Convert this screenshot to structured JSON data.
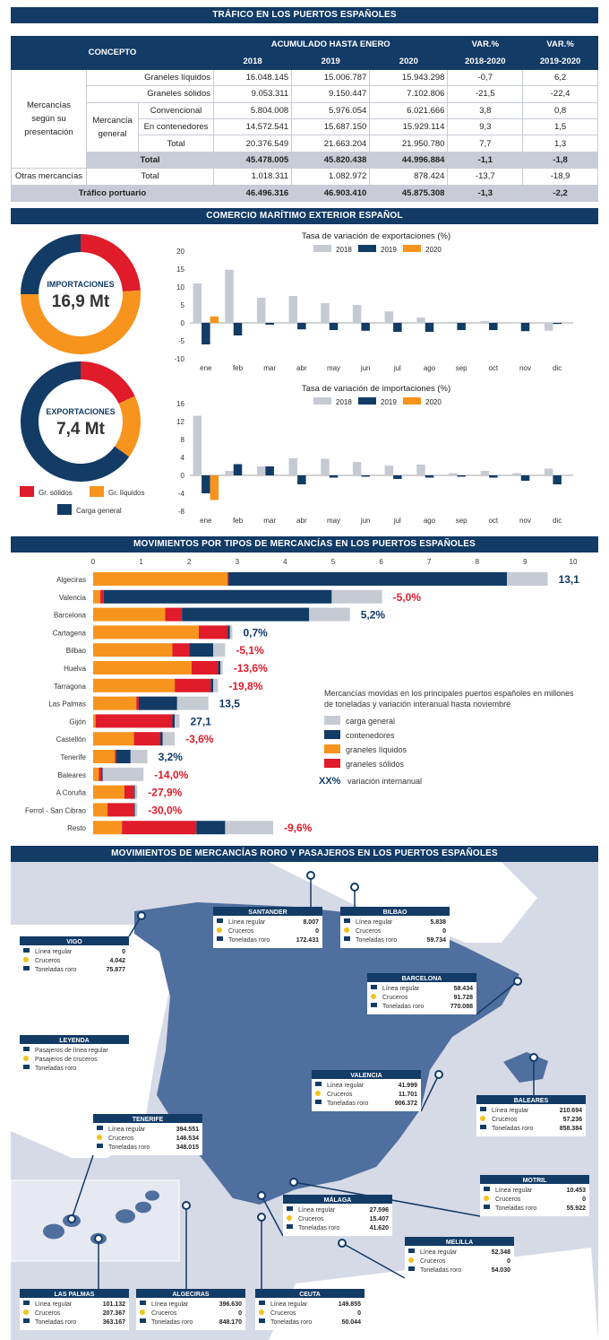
{
  "sections": {
    "trafico": "TRÁFICO EN LOS PUERTOS ESPAÑOLES",
    "comercio": "COMERCIO MARÍTIMO EXTERIOR ESPAÑOL",
    "movimientos": "MOVIMIENTOS POR TIPOS DE MERCANCÍAS EN LOS PUERTOS ESPAÑOLES",
    "roro": "MOVIMIENTOS DE MERCANCÍAS RORO Y PASAJEROS EN LOS PUERTOS ESPAÑOLES"
  },
  "table": {
    "h_concepto": "CONCEPTO",
    "h_acum": "ACUMULADO HASTA ENERO",
    "h_var1": "VAR.%",
    "h_var2": "VAR.%",
    "y2018": "2018",
    "y2019": "2019",
    "y2020": "2020",
    "v1": "2018-2020",
    "v2": "2019-2020",
    "group1": "Mercancías según su presentación",
    "merc_general": "Mercancía general",
    "rows": [
      {
        "label": "Graneles líquidos",
        "v": [
          "16.048.145",
          "15.006.787",
          "15.943.298",
          "-0,7",
          "6,2"
        ]
      },
      {
        "label": "Graneles sólidos",
        "v": [
          "9.053.311",
          "9.150.447",
          "7.102.806",
          "-21,5",
          "-22,4"
        ]
      },
      {
        "label": "Convencional",
        "v": [
          "5.804.008",
          "5.976.054",
          "6.021.666",
          "3,8",
          "0,8"
        ]
      },
      {
        "label": "En contenedores",
        "v": [
          "14.572.541",
          "15.687.150",
          "15.929.114",
          "9,3",
          "1,5"
        ]
      },
      {
        "label": "Total",
        "v": [
          "20.376.549",
          "21.663.204",
          "21.950.780",
          "7,7",
          "1,3"
        ]
      },
      {
        "label": "Total",
        "v": [
          "45.478.005",
          "45.820.438",
          "44.996.884",
          "-1,1",
          "-1,8"
        ]
      },
      {
        "label": "Total",
        "v": [
          "1.018.311",
          "1.082.972",
          "878.424",
          "-13,7",
          "-18,9"
        ]
      },
      {
        "label": "Tráfico portuario",
        "v": [
          "46.496.316",
          "46.903.410",
          "45.875.308",
          "-1,3",
          "-2,2"
        ]
      }
    ],
    "otras": "Otras mercancías"
  },
  "donuts": {
    "imp_label": "IMPORTACIONES",
    "imp_value": "16,9 Mt",
    "exp_label": "EXPORTACIONES",
    "exp_value": "7,4 Mt",
    "legend": [
      "Gr. sólidos",
      "Gr. líquidos",
      "Carga general"
    ],
    "colors": {
      "solidos": "#e01b2a",
      "liquidos": "#f7941d",
      "general": "#123b66"
    }
  },
  "chart_data": [
    {
      "type": "pie",
      "name": "importaciones",
      "labels": [
        "Gr. sólidos",
        "Gr. líquidos",
        "Carga general"
      ],
      "values": [
        24,
        51,
        25
      ]
    },
    {
      "type": "pie",
      "name": "exportaciones",
      "labels": [
        "Gr. sólidos",
        "Gr. líquidos",
        "Carga general"
      ],
      "values": [
        18,
        17,
        65
      ]
    },
    {
      "type": "bar",
      "title": "Tasa de variación de exportaciones (%)",
      "categories": [
        "ene",
        "feb",
        "mar",
        "abr",
        "may",
        "jun",
        "jul",
        "ago",
        "sep",
        "oct",
        "nov",
        "dic"
      ],
      "ylim": [
        -10,
        20
      ],
      "yticks": [
        20,
        15,
        10,
        5,
        0,
        -5,
        -10
      ],
      "series": [
        {
          "name": "2018",
          "color": "#c6cad3",
          "values": [
            11,
            14.8,
            7,
            7.5,
            5.5,
            5,
            3.2,
            1.5,
            0.3,
            0.5,
            0,
            -2.2
          ]
        },
        {
          "name": "2019",
          "color": "#123b66",
          "values": [
            -6,
            -3.5,
            -0.5,
            -1.8,
            -2,
            -2.2,
            -2.5,
            -2.5,
            -2,
            -2,
            -2.3,
            -0.3
          ]
        },
        {
          "name": "2020",
          "color": "#f7941d",
          "values": [
            1.8,
            null,
            null,
            null,
            null,
            null,
            null,
            null,
            null,
            null,
            null,
            null
          ]
        }
      ]
    },
    {
      "type": "bar",
      "title": "Tasa de variación de importaciones (%)",
      "categories": [
        "ene",
        "feb",
        "mar",
        "abr",
        "may",
        "jun",
        "jul",
        "ago",
        "sep",
        "oct",
        "nov",
        "dic"
      ],
      "ylim": [
        -8,
        16
      ],
      "yticks": [
        16,
        12,
        8,
        4,
        0,
        -4,
        -8
      ],
      "series": [
        {
          "name": "2018",
          "color": "#c6cad3",
          "values": [
            13.3,
            1,
            2,
            3.8,
            3.7,
            3,
            2.2,
            2.4,
            0.5,
            1,
            0.5,
            1.5
          ]
        },
        {
          "name": "2019",
          "color": "#123b66",
          "values": [
            -4,
            2.5,
            2,
            -2,
            -0.5,
            -0.3,
            -0.8,
            -0.5,
            -0.3,
            -0.5,
            -1.2,
            -2
          ]
        },
        {
          "name": "2020",
          "color": "#f7941d",
          "values": [
            -5.5,
            null,
            null,
            null,
            null,
            null,
            null,
            null,
            null,
            null,
            null,
            null
          ]
        }
      ]
    },
    {
      "type": "bar",
      "orientation": "horizontal",
      "stacked": true,
      "xticks": [
        0,
        1,
        2,
        3,
        4,
        5,
        6,
        7,
        8,
        9,
        10
      ],
      "legend_text": "Mercancías movidas en los principales puertos españoles en millones de toneladas y variación interanual hasta noviembre",
      "legend": [
        {
          "name": "carga general",
          "color": "#c6cad3"
        },
        {
          "name": "contenedores",
          "color": "#123b66"
        },
        {
          "name": "graneles líquidos",
          "color": "#f7941d"
        },
        {
          "name": "graneles sólidos",
          "color": "#e01b2a"
        }
      ],
      "legend_xx": "XX%",
      "legend_xx_text": "variación internanual",
      "ports": [
        {
          "name": "Algeciras",
          "liquidos": 2.8,
          "solidos": 0.02,
          "contenedores": 5.8,
          "general": 0.85,
          "label": "13,1",
          "neg": false
        },
        {
          "name": "Valencia",
          "liquidos": 0.15,
          "solidos": 0.07,
          "contenedores": 4.75,
          "general": 1.05,
          "label": "-5,0%",
          "neg": true
        },
        {
          "name": "Barcelona",
          "liquidos": 1.5,
          "solidos": 0.35,
          "contenedores": 2.65,
          "general": 0.85,
          "label": "5,2%",
          "neg": false
        },
        {
          "name": "Cartagena",
          "liquidos": 2.2,
          "solidos": 0.6,
          "contenedores": 0.05,
          "general": 0.05,
          "label": "0,7%",
          "neg": false
        },
        {
          "name": "Bilbao",
          "liquidos": 1.65,
          "solidos": 0.35,
          "contenedores": 0.5,
          "general": 0.25,
          "label": "-5,1%",
          "neg": true
        },
        {
          "name": "Huelva",
          "liquidos": 2.05,
          "solidos": 0.55,
          "contenedores": 0.05,
          "general": 0.05,
          "label": "-13,6%",
          "neg": true
        },
        {
          "name": "Tarragona",
          "liquidos": 1.7,
          "solidos": 0.75,
          "contenedores": 0.05,
          "general": 0.1,
          "label": "-19,8%",
          "neg": true
        },
        {
          "name": "Las Palmas",
          "liquidos": 0.9,
          "solidos": 0.05,
          "contenedores": 0.8,
          "general": 0.65,
          "label": "13,5",
          "neg": false
        },
        {
          "name": "Gijón",
          "liquidos": 0.05,
          "solidos": 1.6,
          "contenedores": 0.05,
          "general": 0.1,
          "label": "27,1",
          "neg": false
        },
        {
          "name": "Castellón",
          "liquidos": 0.85,
          "solidos": 0.55,
          "contenedores": 0.05,
          "general": 0.25,
          "label": "-3,6%",
          "neg": true
        },
        {
          "name": "Tenerife",
          "liquidos": 0.45,
          "solidos": 0.03,
          "contenedores": 0.3,
          "general": 0.35,
          "label": "3,2%",
          "neg": false
        },
        {
          "name": "Baleares",
          "liquidos": 0.12,
          "solidos": 0.05,
          "contenedores": 0.03,
          "general": 0.85,
          "label": "-14,0%",
          "neg": true
        },
        {
          "name": "A Coruña",
          "liquidos": 0.65,
          "solidos": 0.2,
          "contenedores": 0.02,
          "general": 0.05,
          "label": "-27,9%",
          "neg": true
        },
        {
          "name": "Ferrol - San Cibrao",
          "liquidos": 0.3,
          "solidos": 0.55,
          "contenedores": 0.02,
          "general": 0.05,
          "label": "-30,0%",
          "neg": true
        },
        {
          "name": "Resto",
          "liquidos": 0.6,
          "solidos": 1.55,
          "contenedores": 0.6,
          "general": 1.0,
          "label": "-9,6%",
          "neg": true
        }
      ]
    }
  ],
  "map": {
    "row_labels": [
      "Línea regular",
      "Cruceros",
      "Toneladas roro"
    ],
    "legend_title": "LEYENDA",
    "legend_items": [
      "Pasajeros de línea regular",
      "Pasajeros de cruceros",
      "Toneladas roro"
    ],
    "ports": [
      {
        "name": "SANTANDER",
        "vals": [
          "8.007",
          "0",
          "172.431"
        ]
      },
      {
        "name": "BILBAO",
        "vals": [
          "5.838",
          "0",
          "59.734"
        ]
      },
      {
        "name": "VIGO",
        "vals": [
          "0",
          "4.042",
          "75.877"
        ]
      },
      {
        "name": "BARCELONA",
        "vals": [
          "58.434",
          "91.728",
          "770.088"
        ]
      },
      {
        "name": "VALENCIA",
        "vals": [
          "41.999",
          "11.701",
          "906.372"
        ]
      },
      {
        "name": "BALEARES",
        "vals": [
          "210.694",
          "57.236",
          "858.384"
        ]
      },
      {
        "name": "TENERIFE",
        "vals": [
          "394.551",
          "146.534",
          "348.015"
        ]
      },
      {
        "name": "MOTRIL",
        "vals": [
          "10.453",
          "0",
          "55.922"
        ]
      },
      {
        "name": "MÁLAGA",
        "vals": [
          "27.596",
          "15.407",
          "41.620"
        ]
      },
      {
        "name": "MELILLA",
        "vals": [
          "52.348",
          "0",
          "54.030"
        ]
      },
      {
        "name": "LAS PALMAS",
        "vals": [
          "101.132",
          "207.367",
          "363.167"
        ]
      },
      {
        "name": "ALGECIRAS",
        "vals": [
          "396.630",
          "0",
          "848.170"
        ]
      },
      {
        "name": "CEUTA",
        "vals": [
          "149.855",
          "0",
          "50.044"
        ]
      }
    ]
  }
}
